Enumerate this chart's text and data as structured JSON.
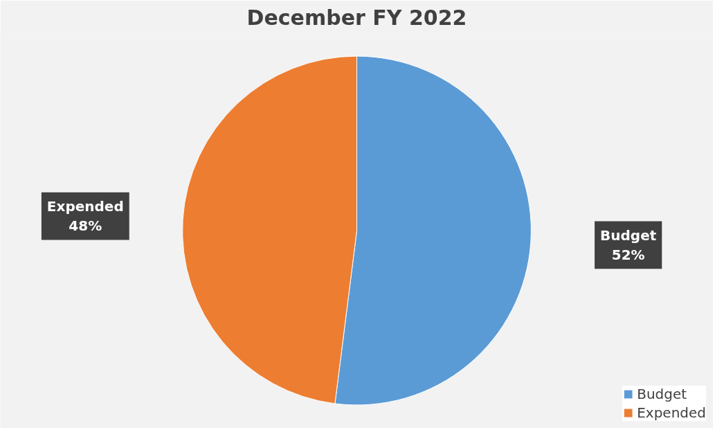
{
  "chart_data": {
    "type": "pie",
    "title": "December FY 2022",
    "categories": [
      "Budget",
      "Expended"
    ],
    "values": [
      52,
      48
    ],
    "colors": [
      "#5b9bd5",
      "#ed7d31"
    ],
    "value_labels": [
      "52%",
      "48%"
    ],
    "legend": "bottom right"
  }
}
